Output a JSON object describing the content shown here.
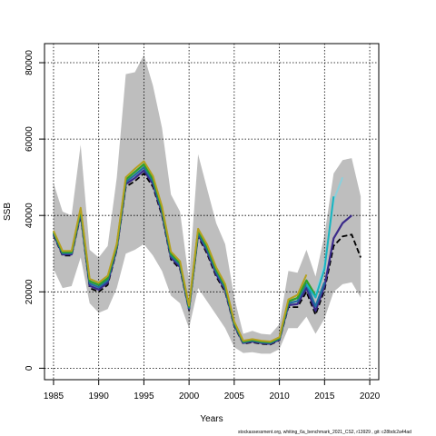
{
  "chart_data": {
    "type": "line",
    "xlabel": "Years",
    "ylabel": "SSB",
    "xlim": [
      1984,
      2021
    ],
    "ylim": [
      -3000,
      85000
    ],
    "x_ticks": [
      1985,
      1990,
      1995,
      2000,
      2005,
      2010,
      2015,
      2020
    ],
    "y_ticks": [
      0,
      20000,
      40000,
      60000,
      80000
    ],
    "grid": true,
    "legend": "none",
    "band": {
      "color": "#bebebe",
      "points": [
        {
          "x": 1985,
          "lo": 26000,
          "hi": 48500
        },
        {
          "x": 1986,
          "lo": 21000,
          "hi": 41000
        },
        {
          "x": 1987,
          "lo": 21500,
          "hi": 40000
        },
        {
          "x": 1988,
          "lo": 29000,
          "hi": 58500
        },
        {
          "x": 1989,
          "lo": 17000,
          "hi": 31000
        },
        {
          "x": 1990,
          "lo": 14500,
          "hi": 29000
        },
        {
          "x": 1991,
          "lo": 15500,
          "hi": 32000
        },
        {
          "x": 1992,
          "lo": 21000,
          "hi": 50000
        },
        {
          "x": 1993,
          "lo": 30000,
          "hi": 77000
        },
        {
          "x": 1994,
          "lo": 31000,
          "hi": 77500
        },
        {
          "x": 1995,
          "lo": 32500,
          "hi": 82000
        },
        {
          "x": 1996,
          "lo": 29500,
          "hi": 74000
        },
        {
          "x": 1997,
          "lo": 25500,
          "hi": 63000
        },
        {
          "x": 1998,
          "lo": 19000,
          "hi": 45500
        },
        {
          "x": 1999,
          "lo": 17000,
          "hi": 41000
        },
        {
          "x": 2000,
          "lo": 10500,
          "hi": 23000
        },
        {
          "x": 2001,
          "lo": 21000,
          "hi": 56000
        },
        {
          "x": 2002,
          "lo": 17500,
          "hi": 47000
        },
        {
          "x": 2003,
          "lo": 14000,
          "hi": 38000
        },
        {
          "x": 2004,
          "lo": 10500,
          "hi": 32500
        },
        {
          "x": 2005,
          "lo": 5500,
          "hi": 18500
        },
        {
          "x": 2006,
          "lo": 4000,
          "hi": 9000
        },
        {
          "x": 2007,
          "lo": 4200,
          "hi": 9800
        },
        {
          "x": 2008,
          "lo": 3800,
          "hi": 9000
        },
        {
          "x": 2009,
          "lo": 3800,
          "hi": 8800
        },
        {
          "x": 2010,
          "lo": 5000,
          "hi": 11500
        },
        {
          "x": 2011,
          "lo": 10500,
          "hi": 25500
        },
        {
          "x": 2012,
          "lo": 10500,
          "hi": 25000
        },
        {
          "x": 2013,
          "lo": 13500,
          "hi": 31000
        },
        {
          "x": 2014,
          "lo": 9000,
          "hi": 24000
        },
        {
          "x": 2015,
          "lo": 13000,
          "hi": 35000
        },
        {
          "x": 2016,
          "lo": 20000,
          "hi": 51000
        },
        {
          "x": 2017,
          "lo": 22000,
          "hi": 54500
        },
        {
          "x": 2018,
          "lo": 22500,
          "hi": 55000
        },
        {
          "x": 2019,
          "lo": 18500,
          "hi": 45000
        }
      ]
    },
    "series": [
      {
        "color": "#000000",
        "dashed": true,
        "width": 1.8,
        "x": [
          1985,
          1986,
          1987,
          1988,
          1989,
          1990,
          1991,
          1992,
          1993,
          1994,
          1995,
          1996,
          1997,
          1998,
          1999,
          2000,
          2001,
          2002,
          2003,
          2004,
          2005,
          2006,
          2007,
          2008,
          2009,
          2010,
          2011,
          2012,
          2013,
          2014,
          2015,
          2016,
          2017,
          2018,
          2019
        ],
        "y": [
          34800,
          29500,
          29500,
          40000,
          21000,
          20000,
          21800,
          31000,
          47500,
          49000,
          51000,
          47500,
          40000,
          28500,
          26000,
          15200,
          34500,
          30000,
          24000,
          20000,
          11000,
          6400,
          6800,
          6400,
          6200,
          7300,
          16000,
          16000,
          20000,
          14000,
          20500,
          32000,
          34500,
          35000,
          29000
        ]
      },
      {
        "color": "#3a2a8a",
        "dashed": false,
        "width": 2.2,
        "x": [
          1985,
          1986,
          1987,
          1988,
          1989,
          1990,
          1991,
          1992,
          1993,
          1994,
          1995,
          1996,
          1997,
          1998,
          1999,
          2000,
          2001,
          2002,
          2003,
          2004,
          2005,
          2006,
          2007,
          2008,
          2009,
          2010,
          2011,
          2012,
          2013,
          2014,
          2015,
          2016,
          2017,
          2018
        ],
        "y": [
          35100,
          29800,
          29800,
          40500,
          21600,
          20600,
          22400,
          31400,
          48200,
          49800,
          51800,
          48200,
          40600,
          29000,
          26500,
          15500,
          35000,
          30600,
          24600,
          20500,
          11300,
          6600,
          7000,
          6600,
          6400,
          7500,
          16500,
          16800,
          21000,
          15000,
          21500,
          34000,
          38000,
          40000
        ]
      },
      {
        "color": "#2070a0",
        "dashed": false,
        "width": 2.2,
        "x": [
          1985,
          1986,
          1987,
          1988,
          1989,
          1990,
          1991,
          1992,
          1993,
          1994,
          1995,
          1996,
          1997,
          1998,
          1999,
          2000,
          2001,
          2002,
          2003,
          2004,
          2005,
          2006,
          2007,
          2008,
          2009,
          2010,
          2011,
          2012,
          2013,
          2014,
          2015
        ],
        "y": [
          35400,
          30100,
          30100,
          41000,
          22200,
          21200,
          23000,
          31800,
          48800,
          50600,
          52600,
          48900,
          41200,
          29500,
          27000,
          15800,
          35500,
          31200,
          25200,
          21000,
          11600,
          6800,
          7200,
          6800,
          6600,
          7700,
          17000,
          17600,
          22000,
          16200,
          22500
        ]
      },
      {
        "color": "#2ca02c",
        "dashed": false,
        "width": 2.2,
        "x": [
          1985,
          1986,
          1987,
          1988,
          1989,
          1990,
          1991,
          1992,
          1993,
          1994,
          1995,
          1996,
          1997,
          1998,
          1999,
          2000,
          2001,
          2002,
          2003,
          2004,
          2005,
          2006,
          2007,
          2008,
          2009,
          2010,
          2011,
          2012,
          2013,
          2014
        ],
        "y": [
          35700,
          30400,
          30400,
          41500,
          22800,
          21800,
          23600,
          32200,
          49400,
          51400,
          53400,
          49600,
          41800,
          30000,
          27500,
          16100,
          36000,
          31800,
          25800,
          21500,
          11900,
          7000,
          7400,
          7000,
          6800,
          7900,
          17500,
          18400,
          23000,
          19000
        ]
      },
      {
        "color": "#b5a01e",
        "dashed": false,
        "width": 2.0,
        "x": [
          1985,
          1986,
          1987,
          1988,
          1989,
          1990,
          1991,
          1992,
          1993,
          1994,
          1995,
          1996,
          1997,
          1998,
          1999,
          2000,
          2001,
          2002,
          2003,
          2004,
          2005,
          2006,
          2007,
          2008,
          2009,
          2010,
          2011,
          2012,
          2013
        ],
        "y": [
          36000,
          30700,
          30700,
          42000,
          23400,
          22400,
          24200,
          32600,
          50000,
          52200,
          54200,
          50300,
          42400,
          30500,
          28000,
          16400,
          36500,
          32400,
          26400,
          22000,
          12200,
          7200,
          7600,
          7200,
          7000,
          8100,
          18000,
          19200,
          24500
        ]
      },
      {
        "color": "#8bd0dc",
        "dashed": false,
        "width": 2.0,
        "x": [
          2014,
          2015,
          2016,
          2017
        ],
        "y": [
          19500,
          27000,
          44000,
          50000
        ]
      },
      {
        "color": "#18b4bf",
        "dashed": false,
        "width": 2.0,
        "x": [
          2013,
          2014,
          2015,
          2016
        ],
        "y": [
          22000,
          18500,
          26000,
          45000
        ]
      }
    ]
  },
  "footnote": "stockassessment.org, whiting_6a_benchmark_2021_CS2, r13929 , git: c28bdc2a44ad"
}
